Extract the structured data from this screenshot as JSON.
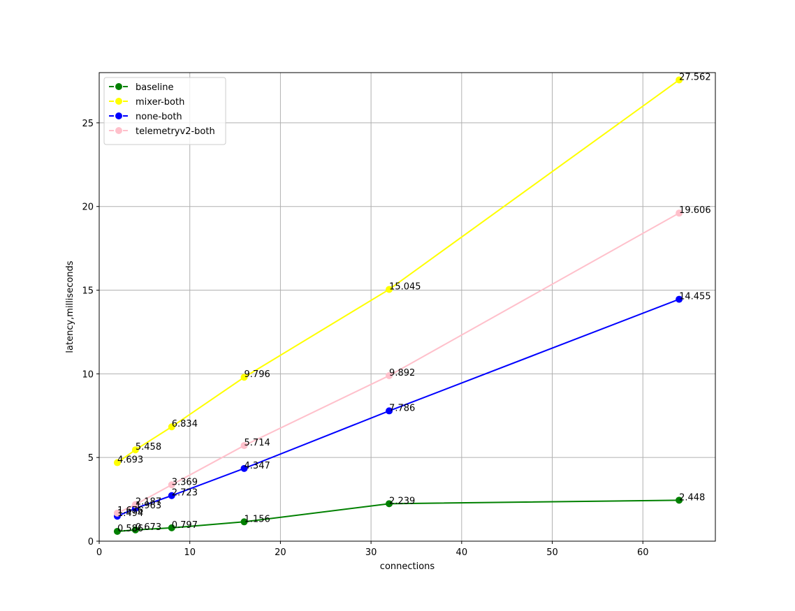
{
  "chart_data": {
    "type": "line",
    "xlabel": "connections",
    "ylabel": "latency,milliseconds",
    "xlim": [
      0,
      68
    ],
    "ylim": [
      0,
      28
    ],
    "xticks": [
      0,
      10,
      20,
      30,
      40,
      50,
      60
    ],
    "yticks": [
      0,
      5,
      10,
      15,
      20,
      25
    ],
    "grid": true,
    "legend_position": "top-left",
    "series": [
      {
        "name": "baseline",
        "color": "#008000",
        "x": [
          2,
          4,
          8,
          16,
          32,
          64
        ],
        "y": [
          0.586,
          0.673,
          0.797,
          1.156,
          2.239,
          2.448
        ],
        "labels": [
          "0.586",
          "0.673",
          "0.797",
          "1.156",
          "2.239",
          "2.448"
        ]
      },
      {
        "name": "mixer-both",
        "color": "#ffff00",
        "x": [
          2,
          4,
          8,
          16,
          32,
          64
        ],
        "y": [
          4.693,
          5.458,
          6.834,
          9.796,
          15.045,
          27.562
        ],
        "labels": [
          "4.693",
          "5.458",
          "6.834",
          "9.796",
          "15.045",
          "27.562"
        ]
      },
      {
        "name": "none-both",
        "color": "#0000ff",
        "x": [
          2,
          4,
          8,
          16,
          32,
          64
        ],
        "y": [
          1.494,
          1.963,
          2.723,
          4.347,
          7.786,
          14.455
        ],
        "labels": [
          "1.494",
          "1.963",
          "2.723",
          "4.347",
          "7.786",
          "14.455"
        ]
      },
      {
        "name": "telemetryv2-both",
        "color": "#ffc0cb",
        "x": [
          2,
          4,
          8,
          16,
          32,
          64
        ],
        "y": [
          1.676,
          2.187,
          3.369,
          5.714,
          9.892,
          19.606
        ],
        "labels": [
          "1.676",
          "2.187",
          "3.369",
          "5.714",
          "9.892",
          "19.606"
        ]
      }
    ]
  }
}
